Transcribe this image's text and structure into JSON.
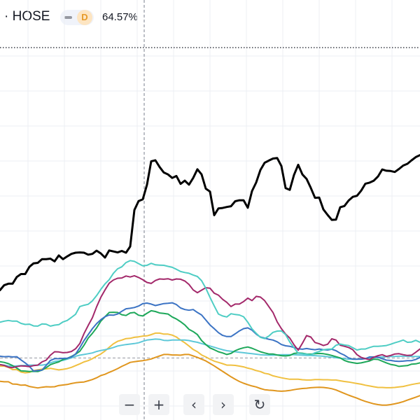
{
  "legend": {
    "exchange": "· HOSE",
    "interval_badge": "D",
    "percent": "64.57%"
  },
  "colors": {
    "background": "#ffffff",
    "grid": "#eceff3",
    "crosshair": "#7a7f8c",
    "baseline": "#9598a1"
  },
  "toolbar": {
    "zoom_out": "−",
    "zoom_in": "+",
    "scroll_left": "‹",
    "scroll_right": "›",
    "reset": "↻"
  },
  "chart_data": {
    "type": "line",
    "title": "",
    "xlabel": "",
    "ylabel": "",
    "x": [
      0,
      1,
      2,
      3,
      4,
      5,
      6,
      7,
      8,
      9,
      10,
      11,
      12,
      13,
      14,
      15,
      16,
      17,
      18,
      19,
      20,
      21,
      22,
      23,
      24,
      25,
      26,
      27,
      28,
      29,
      30,
      31,
      32,
      33,
      34,
      35,
      36,
      37,
      38,
      39,
      40,
      41,
      42,
      43,
      44,
      45,
      46,
      47,
      48,
      49,
      50,
      51,
      52,
      53,
      54,
      55,
      56,
      57,
      58,
      59,
      60,
      61,
      62,
      63,
      64,
      65,
      66,
      67,
      68,
      69,
      70,
      71,
      72,
      73,
      74,
      75,
      76,
      77,
      78,
      79,
      80,
      81,
      82,
      83,
      84,
      85,
      86,
      87,
      88,
      89,
      90,
      91,
      92,
      93,
      94,
      95,
      96,
      97,
      98,
      99,
      100
    ],
    "ylim": [
      -25,
      125
    ],
    "baseline_value": 0,
    "series": [
      {
        "color": "#000000",
        "width": 3,
        "values": [
          27.3,
          29.3,
          29.9,
          29.9,
          32.6,
          33.8,
          33.8,
          36.7,
          38.1,
          38.3,
          39.8,
          39.8,
          40.0,
          38.9,
          41.3,
          39.8,
          40.9,
          41.9,
          42.4,
          42.5,
          42.4,
          41.6,
          41.9,
          43.2,
          42.1,
          40.4,
          43.3,
          42.9,
          42.5,
          43.1,
          42.4,
          44.9,
          59.6,
          63.2,
          63.9,
          69.8,
          79.2,
          79.6,
          76.9,
          74.7,
          73.9,
          72.5,
          73.3,
          70.1,
          71.4,
          69.8,
          72.5,
          76.0,
          73.9,
          68.2,
          67.0,
          57.5,
          60.2,
          60.4,
          60.8,
          61.1,
          63.1,
          63.5,
          63.5,
          60.5,
          67.2,
          70.7,
          75.7,
          78.6,
          79.5,
          80.3,
          80.5,
          77.3,
          68.4,
          67.7,
          73.7,
          77.8,
          73.9,
          72.1,
          68.5,
          64.5,
          64.6,
          59.8,
          57.6,
          55.6,
          55.7,
          60.7,
          61.2,
          63.4,
          64.9,
          65.3,
          67.4,
          70.2,
          70.6,
          71.4,
          73.1,
          75.9,
          75.4,
          75.3,
          74.9,
          76.1,
          77.5,
          78.2,
          79.6,
          80.9,
          81.7
        ]
      },
      {
        "color": "#4ecdc4",
        "width": 2,
        "values": [
          14.4,
          14.8,
          15.1,
          14.8,
          14.8,
          13.9,
          13.5,
          13.6,
          12.9,
          12.8,
          13.7,
          13.6,
          12.8,
          13.2,
          13.4,
          14.5,
          15.1,
          16.3,
          17.6,
          20.7,
          21.2,
          21.6,
          23.0,
          25.1,
          27.6,
          29.8,
          31.5,
          34.1,
          35.9,
          36.7,
          38.4,
          39.2,
          38.9,
          38.0,
          37.1,
          37.3,
          38.1,
          37.5,
          37.4,
          37.3,
          36.9,
          36.5,
          35.7,
          34.8,
          34.4,
          34.1,
          33.4,
          32.8,
          31.1,
          28.1,
          24.4,
          21.0,
          17.7,
          16.9,
          16.5,
          17.8,
          17.5,
          17.3,
          16.6,
          14.4,
          11.7,
          9.9,
          8.3,
          7.8,
          8.8,
          10.3,
          10.8,
          10.9,
          9.4,
          6.4,
          4.1,
          1.9,
          1.7,
          1.5,
          1.2,
          2.1,
          2.6,
          3.3,
          3.5,
          3.6,
          5.1,
          5.6,
          5.2,
          5.0,
          4.1,
          3.2,
          3.6,
          3.6,
          4.2,
          4.7,
          4.7,
          4.8,
          5.0,
          5.5,
          6.1,
          6.6,
          7.2,
          6.3,
          6.4,
          7.1,
          6.3
        ]
      },
      {
        "color": "#a3286a",
        "width": 2,
        "values": [
          -2.7,
          -3.0,
          -3.7,
          -3.9,
          -3.5,
          -3.2,
          -3.3,
          -3.5,
          -3.1,
          -2.9,
          -1.6,
          -0.9,
          1.1,
          2.5,
          2.4,
          2.1,
          2.2,
          2.6,
          3.7,
          5.8,
          9.8,
          13.1,
          16.2,
          20.6,
          24.4,
          27.4,
          30.1,
          31.4,
          32.1,
          32.2,
          33.0,
          32.6,
          33.1,
          32.4,
          31.5,
          30.4,
          30.0,
          31.2,
          31.8,
          31.7,
          31.9,
          31.4,
          31.8,
          31.7,
          31.0,
          29.6,
          27.4,
          26.3,
          27.3,
          28.3,
          28.1,
          26.1,
          25.3,
          23.6,
          22.4,
          20.7,
          21.7,
          21.7,
          22.7,
          24.1,
          23.1,
          24.8,
          24.5,
          23.1,
          20.7,
          18.3,
          14.5,
          11.8,
          9.6,
          8.0,
          5.3,
          3.1,
          5.9,
          9.0,
          8.4,
          6.2,
          5.7,
          5.0,
          5.5,
          7.7,
          7.2,
          5.1,
          4.7,
          4.2,
          3.3,
          1.3,
          0.2,
          -0.3,
          -0.7,
          0.3,
          0.9,
          1.3,
          0.6,
          1.0,
          1.6,
          1.7,
          1.3,
          1.0,
          1.1,
          2.3,
          3.6
        ]
      },
      {
        "color": "#3b73c4",
        "width": 2,
        "values": [
          0.7,
          0.5,
          0.6,
          0.4,
          0.5,
          -0.8,
          -2.0,
          -3.4,
          -5.3,
          -5.0,
          -4.9,
          -3.0,
          -1.0,
          -0.3,
          -0.3,
          -0.2,
          -0.1,
          0.4,
          1.6,
          4.1,
          7.0,
          9.4,
          11.8,
          13.8,
          15.4,
          16.6,
          17.3,
          17.2,
          17.7,
          18.8,
          19.8,
          20.0,
          20.3,
          20.9,
          21.9,
          22.1,
          21.7,
          21.1,
          21.5,
          21.9,
          22.0,
          22.2,
          21.5,
          20.1,
          19.5,
          19.2,
          19.5,
          18.3,
          17.3,
          15.3,
          13.3,
          11.8,
          10.2,
          9.1,
          8.6,
          8.6,
          9.7,
          10.9,
          11.8,
          12.1,
          11.2,
          9.6,
          8.4,
          8.0,
          7.5,
          7.2,
          6.5,
          5.4,
          4.9,
          4.7,
          4.2,
          3.7,
          3.5,
          3.8,
          3.5,
          3.3,
          3.6,
          3.3,
          3.2,
          3.5,
          2.9,
          1.9,
          1.1,
          0.0,
          -0.5,
          -0.5,
          -0.5,
          -0.3,
          0.4,
          0.4,
          0.3,
          -0.3,
          -0.9,
          -1.0,
          -1.3,
          -1.4,
          -1.3,
          -1.1,
          -1.1,
          -0.6,
          0.2
        ]
      },
      {
        "color": "#1ea85a",
        "width": 2,
        "values": [
          -1.5,
          -1.8,
          -2.3,
          -3.1,
          -4.1,
          -5.2,
          -5.3,
          -5.5,
          -5.4,
          -5.5,
          -4.9,
          -3.9,
          -2.7,
          -2.1,
          -1.6,
          -0.6,
          -0.2,
          0.6,
          1.5,
          2.7,
          5.1,
          8.0,
          9.9,
          12.1,
          14.8,
          16.6,
          18.3,
          18.4,
          18.3,
          17.4,
          17.1,
          18.1,
          18.3,
          17.2,
          16.9,
          18.0,
          19.0,
          18.7,
          18.1,
          17.9,
          17.7,
          16.5,
          15.7,
          14.6,
          13.3,
          11.5,
          10.6,
          9.4,
          7.0,
          5.4,
          4.0,
          3.3,
          2.5,
          2.0,
          1.4,
          1.8,
          2.9,
          3.6,
          4.1,
          4.4,
          3.9,
          3.2,
          2.5,
          2.0,
          1.6,
          1.6,
          1.2,
          0.9,
          0.8,
          1.0,
          1.8,
          2.0,
          1.9,
          1.6,
          1.5,
          1.7,
          1.8,
          1.7,
          1.4,
          1.0,
          0.5,
          0.0,
          -1.0,
          -1.6,
          -1.9,
          -2.2,
          -2.0,
          -1.6,
          -1.2,
          -0.5,
          -0.6,
          -1.3,
          -2.0,
          -2.6,
          -2.9,
          -3.4,
          -3.2,
          -3.1,
          -2.5,
          -2.4,
          -2.0
        ]
      },
      {
        "color": "#5ec8d8",
        "width": 2,
        "values": [
          -2.7,
          -2.9,
          -3.2,
          -3.3,
          -3.2,
          -3.1,
          -3.0,
          -2.9,
          -2.9,
          -2.9,
          -2.9,
          -2.6,
          -2.0,
          -1.4,
          -1.2,
          -1.0,
          -0.5,
          0.0,
          0.7,
          1.1,
          1.4,
          1.7,
          2.0,
          2.6,
          3.0,
          3.3,
          3.7,
          4.2,
          4.8,
          5.1,
          5.4,
          5.6,
          5.8,
          6.1,
          6.7,
          7.2,
          7.4,
          7.6,
          7.5,
          7.1,
          7.0,
          7.2,
          7.2,
          7.2,
          7.2,
          7.0,
          6.6,
          6.3,
          5.8,
          5.3,
          4.8,
          4.3,
          3.8,
          3.3,
          2.9,
          2.7,
          2.5,
          2.3,
          2.1,
          1.9,
          1.7,
          1.5,
          1.3,
          1.2,
          1.1,
          1.1,
          1.2,
          1.3,
          1.3,
          1.3,
          1.3,
          1.2,
          1.1,
          1.0,
          1.0,
          0.9,
          0.8,
          0.7,
          0.5,
          0.3,
          0.1,
          -0.1,
          -0.3,
          -0.5,
          -0.5,
          -0.5,
          -0.4,
          -0.2,
          -0.1,
          0.1,
          0.2,
          0.4,
          0.5,
          0.6,
          0.6,
          0.7,
          0.7,
          0.7,
          0.6,
          0.6,
          0.6
        ]
      },
      {
        "color": "#f0c040",
        "width": 2,
        "values": [
          -3.3,
          -3.3,
          -3.8,
          -4.7,
          -4.7,
          -5.7,
          -6.0,
          -5.8,
          -5.1,
          -4.8,
          -4.5,
          -4.4,
          -4.2,
          -4.5,
          -4.8,
          -4.6,
          -4.3,
          -3.8,
          -3.1,
          -2.4,
          -1.6,
          -1.1,
          -0.3,
          0.7,
          1.6,
          2.8,
          4.3,
          5.7,
          6.7,
          7.2,
          7.8,
          7.9,
          8.3,
          8.5,
          8.8,
          8.9,
          9.4,
          10.0,
          10.0,
          9.6,
          9.6,
          9.2,
          8.4,
          7.2,
          6.1,
          4.8,
          3.4,
          2.5,
          1.2,
          0.4,
          -0.5,
          -1.3,
          -1.8,
          -2.3,
          -2.9,
          -2.9,
          -3.0,
          -3.3,
          -3.6,
          -4.1,
          -4.5,
          -5.1,
          -5.5,
          -6.2,
          -6.5,
          -7.2,
          -7.6,
          -8.0,
          -8.3,
          -8.6,
          -8.6,
          -8.6,
          -8.8,
          -8.9,
          -8.9,
          -8.7,
          -8.7,
          -8.8,
          -8.8,
          -8.9,
          -8.9,
          -9.2,
          -9.5,
          -9.7,
          -10.0,
          -10.3,
          -10.6,
          -11.0,
          -11.3,
          -11.6,
          -11.9,
          -11.9,
          -12.0,
          -12.0,
          -11.9,
          -11.7,
          -11.5,
          -11.1,
          -10.7,
          -10.4,
          -10.1
        ]
      },
      {
        "color": "#e0961e",
        "width": 2,
        "values": [
          -9.4,
          -9.6,
          -9.6,
          -10.5,
          -10.6,
          -11.0,
          -10.9,
          -11.5,
          -11.8,
          -12.1,
          -11.8,
          -11.6,
          -11.7,
          -11.6,
          -11.1,
          -10.9,
          -10.7,
          -10.3,
          -10.0,
          -9.8,
          -9.7,
          -9.2,
          -8.7,
          -8.0,
          -7.1,
          -6.6,
          -5.8,
          -5.1,
          -4.3,
          -3.4,
          -2.6,
          -1.8,
          -1.5,
          -1.3,
          -1.1,
          -0.8,
          -0.4,
          0.2,
          0.8,
          1.4,
          1.4,
          1.2,
          1.2,
          1.1,
          1.4,
          1.4,
          0.8,
          0.2,
          -0.5,
          -1.2,
          -2.2,
          -3.2,
          -4.3,
          -5.4,
          -6.5,
          -7.6,
          -8.6,
          -9.5,
          -10.2,
          -10.8,
          -11.3,
          -11.7,
          -12.3,
          -12.8,
          -13.0,
          -13.1,
          -13.3,
          -13.4,
          -13.3,
          -13.1,
          -12.8,
          -12.5,
          -12.3,
          -12.2,
          -12.0,
          -11.9,
          -11.8,
          -11.9,
          -12.1,
          -12.4,
          -12.9,
          -13.6,
          -14.3,
          -15.0,
          -15.6,
          -16.2,
          -16.9,
          -17.5,
          -18.0,
          -18.5,
          -18.8,
          -19.0,
          -19.0,
          -18.8,
          -18.5,
          -18.1,
          -17.6,
          -17.0,
          -16.4,
          -15.8,
          -15.2
        ]
      }
    ]
  }
}
